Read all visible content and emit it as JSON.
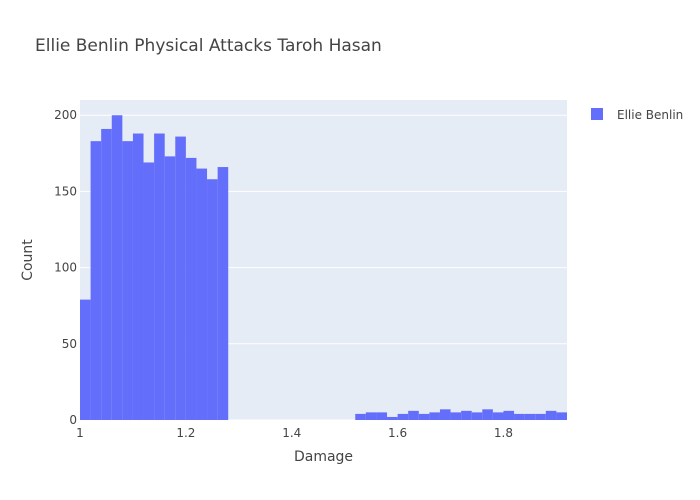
{
  "chart_data": {
    "type": "bar",
    "title": "Ellie Benlin Physical Attacks Taroh Hasan",
    "xlabel": "Damage",
    "ylabel": "Count",
    "xlim": [
      1.0,
      1.92
    ],
    "ylim": [
      0,
      210
    ],
    "grid": true,
    "legend_position": "top-right",
    "xticks": [
      1,
      1.2,
      1.4,
      1.6,
      1.8
    ],
    "xtick_labels": [
      "1",
      "1.2",
      "1.4",
      "1.6",
      "1.8"
    ],
    "yticks": [
      0,
      50,
      100,
      150,
      200
    ],
    "ytick_labels": [
      "0",
      "50",
      "100",
      "150",
      "200"
    ],
    "bin_width": 0.02,
    "series": [
      {
        "name": "Ellie Benlin",
        "color": "#636efa",
        "bin_starts": [
          1.0,
          1.02,
          1.04,
          1.06,
          1.08,
          1.1,
          1.12,
          1.14,
          1.16,
          1.18,
          1.2,
          1.22,
          1.24,
          1.26,
          1.28,
          1.3,
          1.32,
          1.34,
          1.36,
          1.38,
          1.4,
          1.42,
          1.44,
          1.46,
          1.48,
          1.5,
          1.52,
          1.54,
          1.56,
          1.58,
          1.6,
          1.62,
          1.64,
          1.66,
          1.68,
          1.7,
          1.72,
          1.74,
          1.76,
          1.78,
          1.8,
          1.82,
          1.84,
          1.86,
          1.88,
          1.9
        ],
        "values": [
          79,
          183,
          191,
          200,
          183,
          188,
          169,
          188,
          173,
          186,
          172,
          165,
          158,
          166,
          0,
          0,
          0,
          0,
          0,
          0,
          0,
          0,
          0,
          0,
          0,
          0,
          4,
          5,
          5,
          2,
          4,
          6,
          4,
          5,
          7,
          5,
          6,
          5,
          7,
          5,
          6,
          4,
          4,
          4,
          6,
          5
        ]
      }
    ]
  }
}
